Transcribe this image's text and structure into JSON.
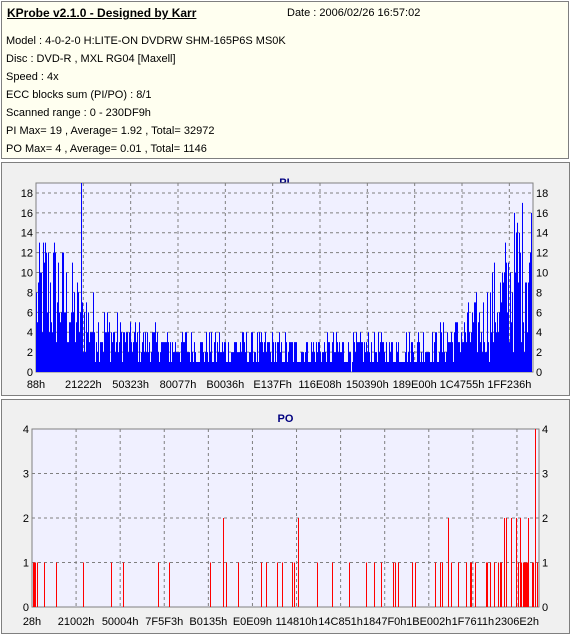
{
  "header": {
    "title": "KProbe v2.1.0 - Designed by Karr",
    "date": "Date : 2006/02/26 16:57:02",
    "lines": [
      "Model : 4-0-2-0 H:LITE-ON DVDRW SHM-165P6S MS0K",
      "Disc : DVD-R , MXL RG04 [Maxell]",
      "Speed : 4x",
      "ECC blocks sum (PI/PO) : 8/1",
      "Scanned range : 0 - 230DF9h",
      "PI Max= 19 , Average= 1.92 , Total= 32972",
      "PO Max= 4 , Average= 0.01 , Total= 1146"
    ]
  },
  "colors": {
    "pi": "#0000ff",
    "po": "#ff0000",
    "grid": "#7f7f7f",
    "plot_bg": "#f0f0ff",
    "title": "#000080"
  },
  "chart_data": [
    {
      "type": "bar",
      "title": "PI",
      "ylim": [
        0,
        19
      ],
      "yticks": [
        0,
        2,
        4,
        6,
        8,
        10,
        12,
        14,
        16,
        18
      ],
      "xticks": [
        "88h",
        "21222h",
        "50323h",
        "80077h",
        "B0036h",
        "E137Fh",
        "116E08h",
        "150390h",
        "189E00h",
        "1C4755h",
        "1FF236h"
      ],
      "max": 19,
      "average": 1.92,
      "total": 32972,
      "profile": [
        [
          0,
          7
        ],
        [
          0.02,
          9
        ],
        [
          0.05,
          8
        ],
        [
          0.08,
          6
        ],
        [
          0.11,
          5
        ],
        [
          0.14,
          4
        ],
        [
          0.18,
          3.2
        ],
        [
          0.3,
          2.6
        ],
        [
          0.45,
          2.3
        ],
        [
          0.6,
          2.2
        ],
        [
          0.72,
          2.3
        ],
        [
          0.8,
          2.7
        ],
        [
          0.85,
          3.5
        ],
        [
          0.9,
          5
        ],
        [
          0.94,
          7.5
        ],
        [
          0.97,
          10.5
        ],
        [
          1.0,
          12
        ]
      ],
      "peak": {
        "at": 0.09,
        "value": 19
      }
    },
    {
      "type": "bar",
      "title": "PO",
      "ylim": [
        0,
        4
      ],
      "yticks": [
        0,
        1,
        2,
        3,
        4
      ],
      "xticks": [
        "28h",
        "21002h",
        "50004h",
        "7F5F3h",
        "B0135h",
        "E0E09h",
        "114810h",
        "14C851h",
        "1847F0h",
        "1BE002h",
        "1F7611h",
        "2306E2h"
      ],
      "max": 4,
      "average": 0.01,
      "total": 1146,
      "profile": [
        [
          0,
          0.15
        ],
        [
          0.1,
          0.2
        ],
        [
          0.3,
          0.12
        ],
        [
          0.5,
          0.1
        ],
        [
          0.7,
          0.15
        ],
        [
          0.78,
          0.2
        ],
        [
          0.85,
          0.45
        ],
        [
          0.92,
          0.8
        ],
        [
          1.0,
          1.0
        ]
      ],
      "peak": {
        "at": 0.995,
        "value": 4
      }
    }
  ]
}
